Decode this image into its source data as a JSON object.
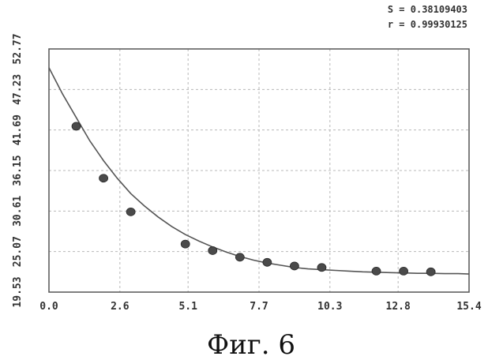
{
  "stats": {
    "s_line": "S = 0.38109403",
    "r_line": "r = 0.99930125"
  },
  "caption": "Фиг. 6",
  "chart_data": {
    "type": "scatter",
    "title": "",
    "xlabel": "",
    "ylabel": "",
    "xlim": [
      0.0,
      15.4
    ],
    "ylim": [
      19.53,
      52.77
    ],
    "x_ticks": [
      0.0,
      2.6,
      5.1,
      7.7,
      10.3,
      12.8,
      15.4
    ],
    "x_tick_labels": [
      "0.0",
      "2.6",
      "5.1",
      "7.7",
      "10.3",
      "12.8",
      "15.4"
    ],
    "y_ticks": [
      19.53,
      25.07,
      30.61,
      36.15,
      41.69,
      47.23,
      52.77
    ],
    "y_tick_labels": [
      "19.53",
      "25.07",
      "30.61",
      "36.15",
      "41.69",
      "47.23",
      "52.77"
    ],
    "grid": true,
    "series": [
      {
        "type": "scatter",
        "x": [
          1,
          2,
          3,
          5,
          6,
          7,
          8,
          9,
          10,
          12,
          13,
          14
        ],
        "y": [
          42.2,
          35.1,
          30.5,
          26.1,
          25.2,
          24.3,
          23.6,
          23.1,
          22.9,
          22.4,
          22.4,
          22.3
        ]
      },
      {
        "type": "line",
        "fit": "exponential",
        "x": [
          0.0,
          0.5,
          1.0,
          1.5,
          2.0,
          2.5,
          3.0,
          3.5,
          4.0,
          4.5,
          5.0,
          5.5,
          6.0,
          6.5,
          7.0,
          7.5,
          8.0,
          8.5,
          9.0,
          9.5,
          10.0,
          10.5,
          11.0,
          11.5,
          12.0,
          12.5,
          13.0,
          13.5,
          14.0,
          14.5,
          15.0,
          15.4
        ],
        "y": [
          50.2,
          46.6,
          43.4,
          40.2,
          37.5,
          35.1,
          33.0,
          31.3,
          29.8,
          28.5,
          27.4,
          26.5,
          25.7,
          25.0,
          24.4,
          23.9,
          23.5,
          23.2,
          22.9,
          22.7,
          22.6,
          22.5,
          22.4,
          22.3,
          22.25,
          22.2,
          22.15,
          22.1,
          22.1,
          22.05,
          22.05,
          22.0
        ]
      }
    ],
    "colors": {
      "marker": "#4a4a4a",
      "line": "#555555",
      "grid": "#b8b8b8",
      "frame": "#555555"
    }
  }
}
